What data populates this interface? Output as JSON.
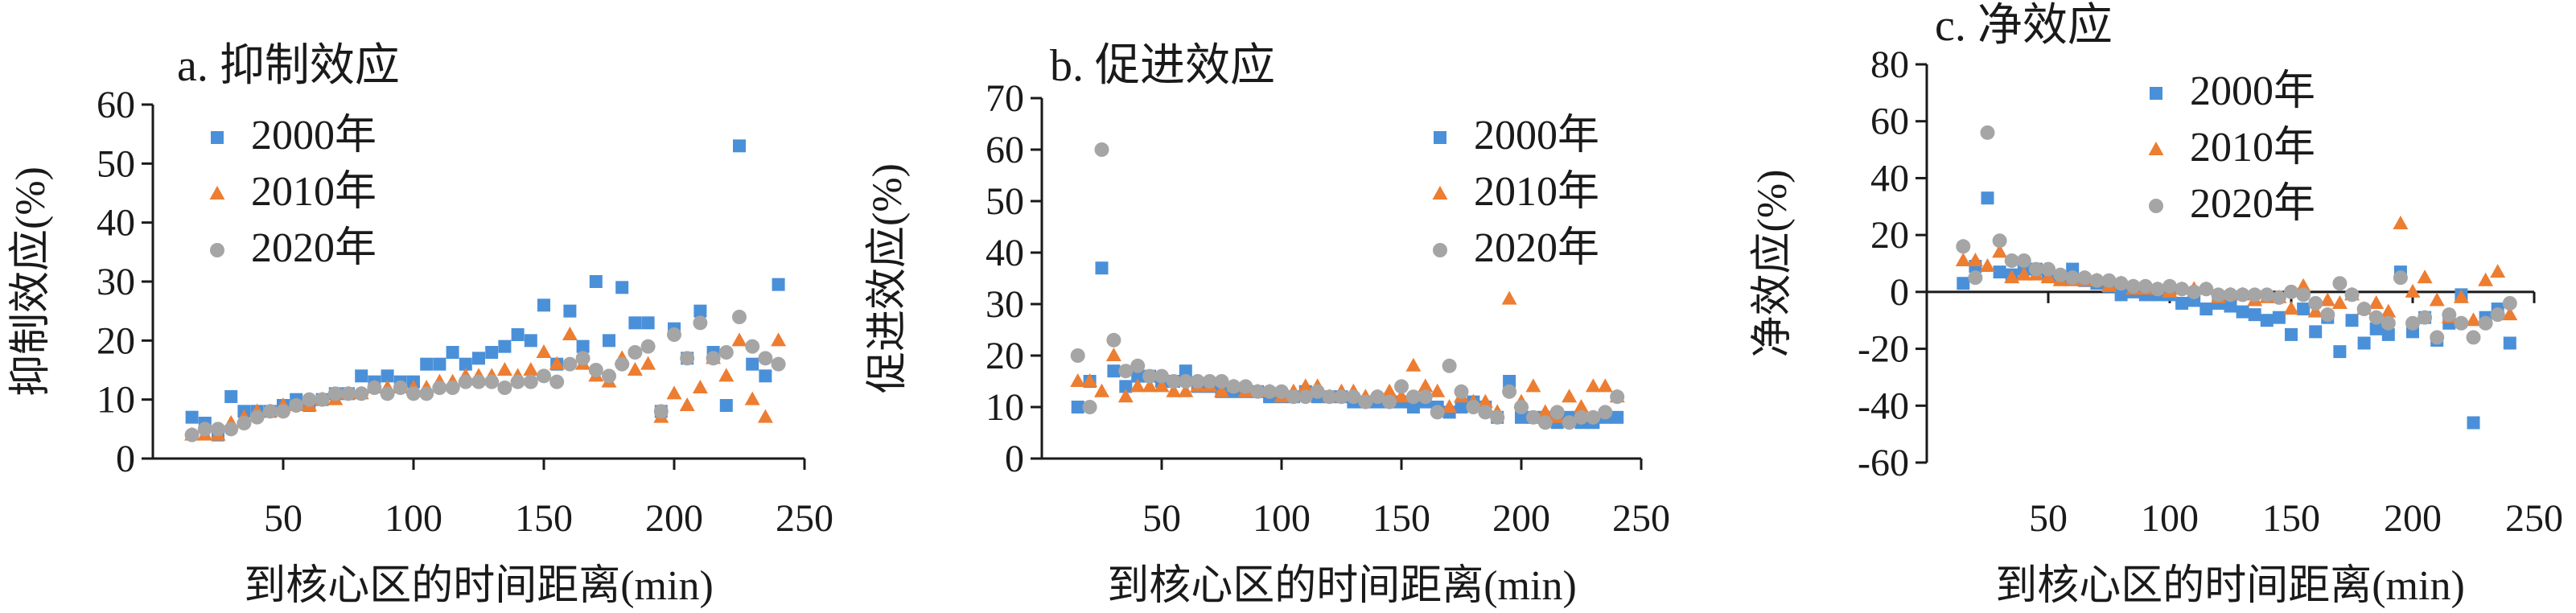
{
  "colors": {
    "2000": "#4a90d9",
    "2010": "#ed7d31",
    "2020": "#a5a5a5",
    "axis": "#1a1a1a"
  },
  "chart_data": [
    {
      "type": "scatter",
      "title": "a. 抑制效应",
      "xlabel": "到核心区的时间距离(min)",
      "ylabel": "抑制效应(%)",
      "xlim": [
        0,
        250
      ],
      "ylim": [
        0,
        60
      ],
      "xticks": [
        50,
        100,
        150,
        200,
        250
      ],
      "yticks": [
        0,
        10,
        20,
        30,
        40,
        50,
        60
      ],
      "legend_position": "top-left",
      "series": [
        {
          "name": "2000年",
          "marker": "square",
          "color": "#4a90d9",
          "x": [
            15,
            20,
            25,
            30,
            35,
            40,
            45,
            50,
            55,
            60,
            65,
            70,
            75,
            80,
            85,
            90,
            95,
            100,
            105,
            110,
            115,
            120,
            125,
            130,
            135,
            140,
            145,
            150,
            155,
            160,
            165,
            170,
            175,
            180,
            185,
            190,
            195,
            200,
            205,
            210,
            215,
            220,
            225,
            230,
            235,
            240
          ],
          "y": [
            7,
            6,
            4,
            10.5,
            8,
            8,
            8,
            9,
            10,
            9,
            10,
            11,
            11,
            14,
            13,
            14,
            13,
            13,
            16,
            16,
            18,
            16,
            17,
            18,
            19,
            21,
            20,
            26,
            16,
            25,
            19,
            30,
            20,
            29,
            23,
            23,
            8,
            22,
            17,
            25,
            18,
            9,
            53,
            16,
            14,
            29.5
          ]
        },
        {
          "name": "2010年",
          "marker": "triangle",
          "color": "#ed7d31",
          "x": [
            15,
            20,
            25,
            30,
            35,
            40,
            45,
            50,
            55,
            60,
            65,
            70,
            75,
            80,
            85,
            90,
            95,
            100,
            105,
            110,
            115,
            120,
            125,
            130,
            135,
            140,
            145,
            150,
            155,
            160,
            165,
            170,
            175,
            180,
            185,
            190,
            195,
            200,
            205,
            210,
            215,
            220,
            225,
            230,
            235,
            240
          ],
          "y": [
            4,
            4,
            4,
            6,
            7,
            8,
            8,
            9,
            9,
            9,
            10,
            10,
            11,
            11,
            12,
            12,
            12,
            12,
            12,
            13,
            13,
            14,
            14,
            14,
            15,
            14,
            15,
            18,
            16,
            21,
            16,
            14,
            13,
            17,
            15,
            16,
            7,
            11,
            9,
            12,
            17,
            14,
            20,
            10,
            7,
            20
          ]
        },
        {
          "name": "2020年",
          "marker": "circle",
          "color": "#a5a5a5",
          "x": [
            15,
            20,
            25,
            30,
            35,
            40,
            45,
            50,
            55,
            60,
            65,
            70,
            75,
            80,
            85,
            90,
            95,
            100,
            105,
            110,
            115,
            120,
            125,
            130,
            135,
            140,
            145,
            150,
            155,
            160,
            165,
            170,
            175,
            180,
            185,
            190,
            195,
            200,
            205,
            210,
            215,
            220,
            225,
            230,
            235,
            240
          ],
          "y": [
            4,
            5,
            5,
            5,
            6,
            7,
            8,
            8,
            9,
            10,
            10,
            11,
            11,
            11,
            12,
            11,
            12,
            11,
            11,
            12,
            12,
            13,
            13,
            13,
            12,
            13,
            13,
            14,
            13,
            16,
            17,
            15,
            14,
            16,
            18,
            19,
            8,
            21,
            17,
            23,
            17,
            18,
            24,
            19,
            17,
            16
          ]
        }
      ]
    },
    {
      "type": "scatter",
      "title": "b. 促进效应",
      "xlabel": "到核心区的时间距离(min)",
      "ylabel": "促进效应(%)",
      "xlim": [
        0,
        250
      ],
      "ylim": [
        0,
        70
      ],
      "xticks": [
        50,
        100,
        150,
        200,
        250
      ],
      "yticks": [
        0,
        10,
        20,
        30,
        40,
        50,
        60,
        70
      ],
      "legend_position": "top-right",
      "series": [
        {
          "name": "2000年",
          "marker": "square",
          "color": "#4a90d9",
          "x": [
            15,
            20,
            25,
            30,
            35,
            40,
            45,
            50,
            55,
            60,
            65,
            70,
            75,
            80,
            85,
            90,
            95,
            100,
            105,
            110,
            115,
            120,
            125,
            130,
            135,
            140,
            145,
            150,
            155,
            160,
            165,
            170,
            175,
            180,
            185,
            190,
            195,
            200,
            205,
            210,
            215,
            220,
            225,
            230,
            235,
            240
          ],
          "y": [
            10,
            15,
            37,
            17,
            14,
            16,
            16,
            15,
            15,
            17,
            14,
            14,
            13,
            13,
            13,
            13,
            12,
            12,
            12,
            13,
            12,
            12,
            12,
            11,
            11,
            11,
            11,
            11,
            10,
            11,
            10,
            9,
            10,
            11,
            10,
            8,
            15,
            8,
            8,
            8,
            7,
            8,
            7,
            7,
            8,
            8
          ]
        },
        {
          "name": "2010年",
          "marker": "triangle",
          "color": "#ed7d31",
          "x": [
            15,
            20,
            25,
            30,
            35,
            40,
            45,
            50,
            55,
            60,
            65,
            70,
            75,
            80,
            85,
            90,
            95,
            100,
            105,
            110,
            115,
            120,
            125,
            130,
            135,
            140,
            145,
            150,
            155,
            160,
            165,
            170,
            175,
            180,
            185,
            190,
            195,
            200,
            205,
            210,
            215,
            220,
            225,
            230,
            235,
            240
          ],
          "y": [
            15,
            15,
            13,
            20,
            12,
            14,
            14,
            14,
            13,
            13,
            14,
            14,
            13,
            14,
            13,
            13,
            13,
            12,
            13,
            14,
            14,
            12,
            13,
            13,
            12,
            12,
            13,
            12,
            18,
            14,
            13,
            10,
            12,
            11,
            11,
            9,
            31,
            11,
            14,
            9,
            8,
            12,
            10,
            14,
            14,
            12
          ]
        },
        {
          "name": "2020年",
          "marker": "circle",
          "color": "#a5a5a5",
          "x": [
            15,
            20,
            25,
            30,
            35,
            40,
            45,
            50,
            55,
            60,
            65,
            70,
            75,
            80,
            85,
            90,
            95,
            100,
            105,
            110,
            115,
            120,
            125,
            130,
            135,
            140,
            145,
            150,
            155,
            160,
            165,
            170,
            175,
            180,
            185,
            190,
            195,
            200,
            205,
            210,
            215,
            220,
            225,
            230,
            235,
            240
          ],
          "y": [
            20,
            10,
            60,
            23,
            17,
            18,
            16,
            16,
            15,
            15,
            15,
            15,
            15,
            14,
            14,
            13,
            13,
            13,
            12,
            12,
            13,
            12,
            12,
            12,
            11,
            12,
            11,
            14,
            12,
            12,
            9,
            18,
            13,
            10,
            9,
            8,
            13,
            10,
            8,
            7,
            9,
            7,
            8,
            8,
            9,
            12
          ]
        }
      ]
    },
    {
      "type": "scatter",
      "title": "c. 净效应",
      "xlabel": "到核心区的时间距离(min)",
      "ylabel": "净效应(%)",
      "xlim": [
        0,
        250
      ],
      "ylim": [
        -60,
        80
      ],
      "xticks": [
        50,
        100,
        150,
        200,
        250
      ],
      "yticks": [
        -60,
        -40,
        -20,
        0,
        20,
        40,
        60,
        80
      ],
      "legend_position": "top-center",
      "series": [
        {
          "name": "2000年",
          "marker": "square",
          "color": "#4a90d9",
          "x": [
            15,
            20,
            25,
            30,
            35,
            40,
            45,
            50,
            55,
            60,
            65,
            70,
            75,
            80,
            85,
            90,
            95,
            100,
            105,
            110,
            115,
            120,
            125,
            130,
            135,
            140,
            145,
            150,
            155,
            160,
            165,
            170,
            175,
            180,
            185,
            190,
            195,
            200,
            205,
            210,
            215,
            220,
            225,
            230,
            235,
            240
          ],
          "y": [
            3,
            9,
            33,
            7,
            6,
            8,
            8,
            6,
            5,
            8,
            4,
            3,
            2,
            -1,
            0,
            -1,
            -1,
            -1,
            -4,
            -3,
            -6,
            -4,
            -5,
            -7,
            -8,
            -10,
            -9,
            -15,
            -6,
            -14,
            -9,
            -21,
            -10,
            -18,
            -13,
            -15,
            7,
            -14,
            -9,
            -17,
            -11,
            -1,
            -46,
            -9,
            -6,
            -18
          ]
        },
        {
          "name": "2010年",
          "marker": "triangle",
          "color": "#ed7d31",
          "x": [
            15,
            20,
            25,
            30,
            35,
            40,
            45,
            50,
            55,
            60,
            65,
            70,
            75,
            80,
            85,
            90,
            95,
            100,
            105,
            110,
            115,
            120,
            125,
            130,
            135,
            140,
            145,
            150,
            155,
            160,
            165,
            170,
            175,
            180,
            185,
            190,
            195,
            200,
            205,
            210,
            215,
            220,
            225,
            230,
            235,
            240
          ],
          "y": [
            11,
            11,
            9,
            14,
            5,
            6,
            6,
            5,
            4,
            4,
            4,
            4,
            2,
            3,
            1,
            1,
            1,
            0,
            1,
            1,
            1,
            -2,
            -1,
            -1,
            -3,
            -2,
            -2,
            -6,
            2,
            -7,
            -3,
            -4,
            -1,
            -6,
            -4,
            -7,
            24,
            0,
            5,
            -3,
            -9,
            -2,
            -10,
            4,
            7,
            -8
          ]
        },
        {
          "name": "2020年",
          "marker": "circle",
          "color": "#a5a5a5",
          "x": [
            15,
            20,
            25,
            30,
            35,
            40,
            45,
            50,
            55,
            60,
            65,
            70,
            75,
            80,
            85,
            90,
            95,
            100,
            105,
            110,
            115,
            120,
            125,
            130,
            135,
            140,
            145,
            150,
            155,
            160,
            165,
            170,
            175,
            180,
            185,
            190,
            195,
            200,
            205,
            210,
            215,
            220,
            225,
            230,
            235,
            240
          ],
          "y": [
            16,
            5,
            56,
            18,
            11,
            11,
            8,
            8,
            6,
            5,
            5,
            4,
            4,
            3,
            2,
            2,
            1,
            2,
            1,
            0,
            1,
            -1,
            -1,
            -1,
            -1,
            -1,
            -2,
            0,
            -1,
            -4,
            -8,
            3,
            -1,
            -6,
            -9,
            -11,
            5,
            -11,
            -9,
            -16,
            -8,
            -11,
            -16,
            -11,
            -8,
            -4
          ]
        }
      ]
    }
  ]
}
